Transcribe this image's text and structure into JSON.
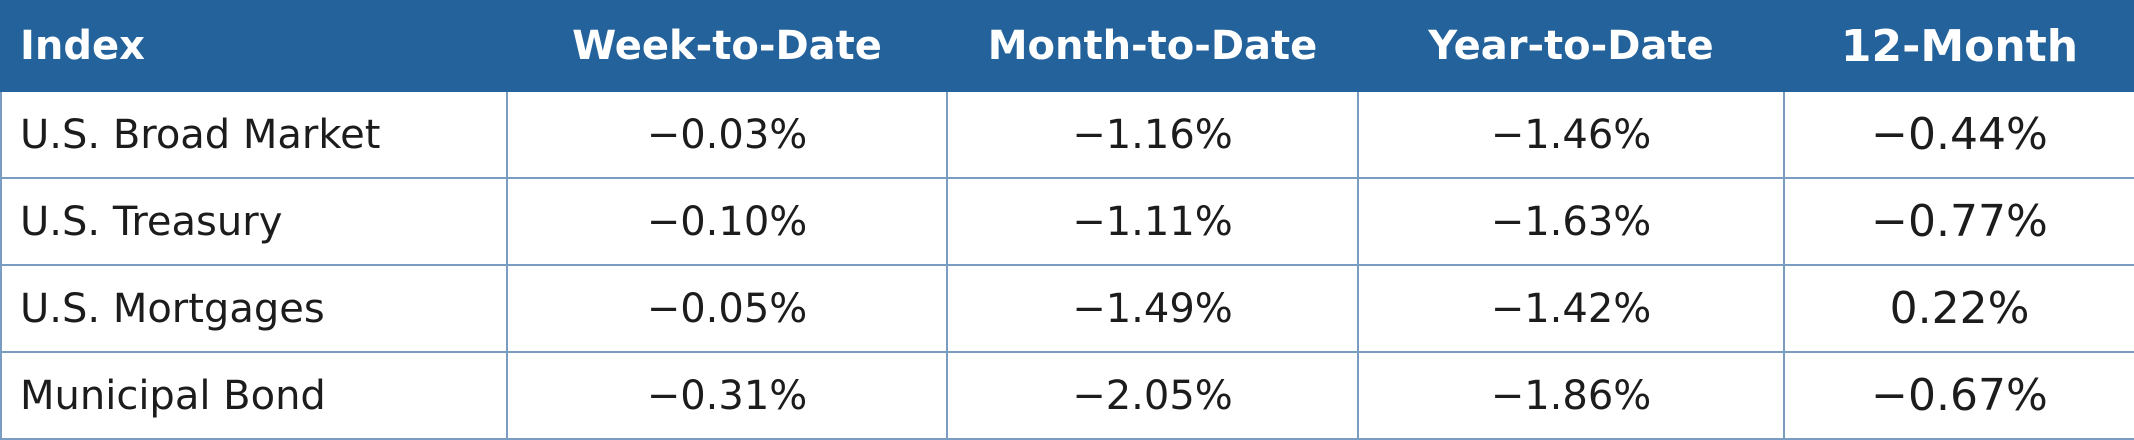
{
  "table": {
    "header": [
      "Index",
      "Week-to-Date",
      "Month-to-Date",
      "Year-to-Date",
      "12-Month"
    ],
    "rows": [
      [
        "U.S. Broad Market",
        "−0.03%",
        "−1.16%",
        "−1.46%",
        "−0.44%"
      ],
      [
        "U.S. Treasury",
        "−0.10%",
        "−1.11%",
        "−1.63%",
        "−0.77%"
      ],
      [
        "U.S. Mortgages",
        "−0.05%",
        "−1.49%",
        "−1.42%",
        "0.22%"
      ],
      [
        "Municipal Bond",
        "−0.31%",
        "−2.05%",
        "−1.86%",
        "−0.67%"
      ]
    ]
  }
}
